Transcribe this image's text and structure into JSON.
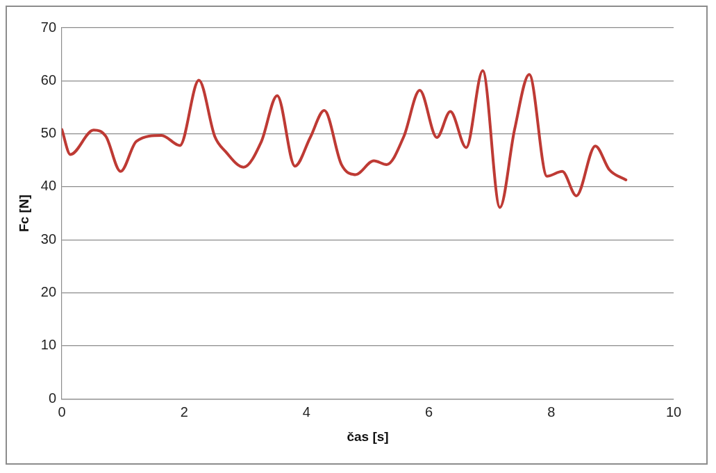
{
  "chart_data": {
    "type": "line",
    "xlabel": "čas [s]",
    "ylabel": "Fc [N]",
    "xlim": [
      0,
      10
    ],
    "xticks": [
      0,
      2,
      4,
      6,
      8,
      10
    ],
    "ylim": [
      0,
      70
    ],
    "yticks": [
      0,
      10,
      20,
      30,
      40,
      50,
      60,
      70
    ],
    "grid": "y",
    "legend": false,
    "marker": "none",
    "line_style": "solid",
    "series": [
      {
        "color": "#be3a34",
        "x": [
          0,
          0.14,
          0.52,
          0.72,
          0.96,
          1.22,
          1.63,
          1.93,
          2.24,
          2.5,
          2.68,
          2.97,
          3.26,
          3.52,
          3.81,
          4.06,
          4.29,
          4.57,
          4.8,
          5.1,
          5.31,
          5.59,
          5.85,
          6.13,
          6.35,
          6.61,
          6.88,
          7.16,
          7.4,
          7.64,
          7.93,
          8.18,
          8.41,
          8.72,
          8.95,
          9.22
        ],
        "values": [
          50.8,
          46.1,
          50.7,
          49.5,
          42.9,
          48.6,
          49.7,
          47.8,
          60.1,
          49.5,
          46.6,
          43.7,
          48.5,
          57.2,
          43.9,
          49.3,
          54.4,
          44.2,
          42.3,
          44.9,
          44.2,
          49.5,
          58.2,
          49.3,
          54.2,
          47.4,
          61.9,
          36.1,
          50.8,
          61.2,
          42,
          42.9,
          38.3,
          47.7,
          43.2,
          41.3
        ]
      }
    ]
  }
}
